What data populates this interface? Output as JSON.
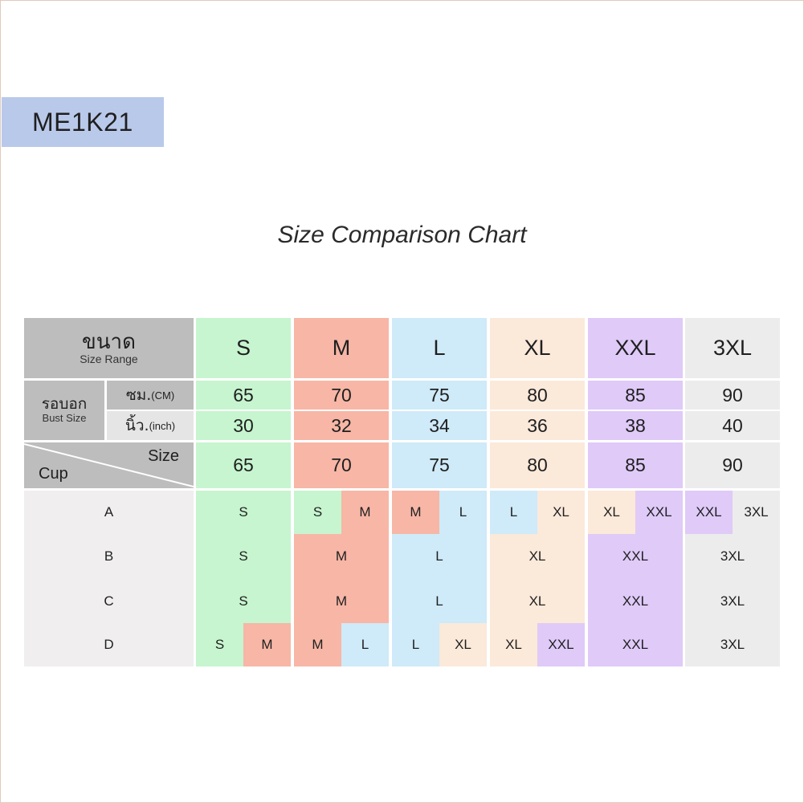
{
  "product_code": "ME1K21",
  "title": "Size Comparison Chart",
  "header": {
    "size_th": "ขนาด",
    "size_en": "Size Range",
    "sizes": [
      "S",
      "M",
      "L",
      "XL",
      "XXL",
      "3XL"
    ]
  },
  "bust": {
    "label_th": "รอบอก",
    "label_en": "Bust Size",
    "cm_th": "ซม.",
    "cm_en": "(CM)",
    "inch_th": "นิ้ว.",
    "inch_en": "(inch)",
    "cm_values": [
      "65",
      "70",
      "75",
      "80",
      "85",
      "90"
    ],
    "inch_values": [
      "30",
      "32",
      "34",
      "36",
      "38",
      "40"
    ]
  },
  "cup_size": {
    "size_label": "Size",
    "cup_label": "Cup",
    "values": [
      "65",
      "70",
      "75",
      "80",
      "85",
      "90"
    ]
  },
  "cups": [
    {
      "cup": "A",
      "cells": [
        [
          "S"
        ],
        [
          "S",
          "M"
        ],
        [
          "M",
          "L"
        ],
        [
          "L",
          "XL"
        ],
        [
          "XL",
          "XXL"
        ],
        [
          "XXL",
          "3XL"
        ]
      ]
    },
    {
      "cup": "B",
      "cells": [
        [
          "S"
        ],
        [
          "M"
        ],
        [
          "L"
        ],
        [
          "XL"
        ],
        [
          "XXL"
        ],
        [
          "3XL"
        ]
      ]
    },
    {
      "cup": "C",
      "cells": [
        [
          "S"
        ],
        [
          "M"
        ],
        [
          "L"
        ],
        [
          "XL"
        ],
        [
          "XXL"
        ],
        [
          "3XL"
        ]
      ]
    },
    {
      "cup": "D",
      "cells": [
        [
          "S",
          "M"
        ],
        [
          "M",
          "L"
        ],
        [
          "L",
          "XL"
        ],
        [
          "XL",
          "XXL"
        ],
        [
          "XXL"
        ],
        [
          "3XL"
        ]
      ]
    }
  ],
  "colors": {
    "S": "#c6f5cf",
    "M": "#f7b6a6",
    "L": "#cfeaf8",
    "XL": "#fbe9da",
    "XXL": "#dfcaf8",
    "3XL": "#ececec"
  }
}
